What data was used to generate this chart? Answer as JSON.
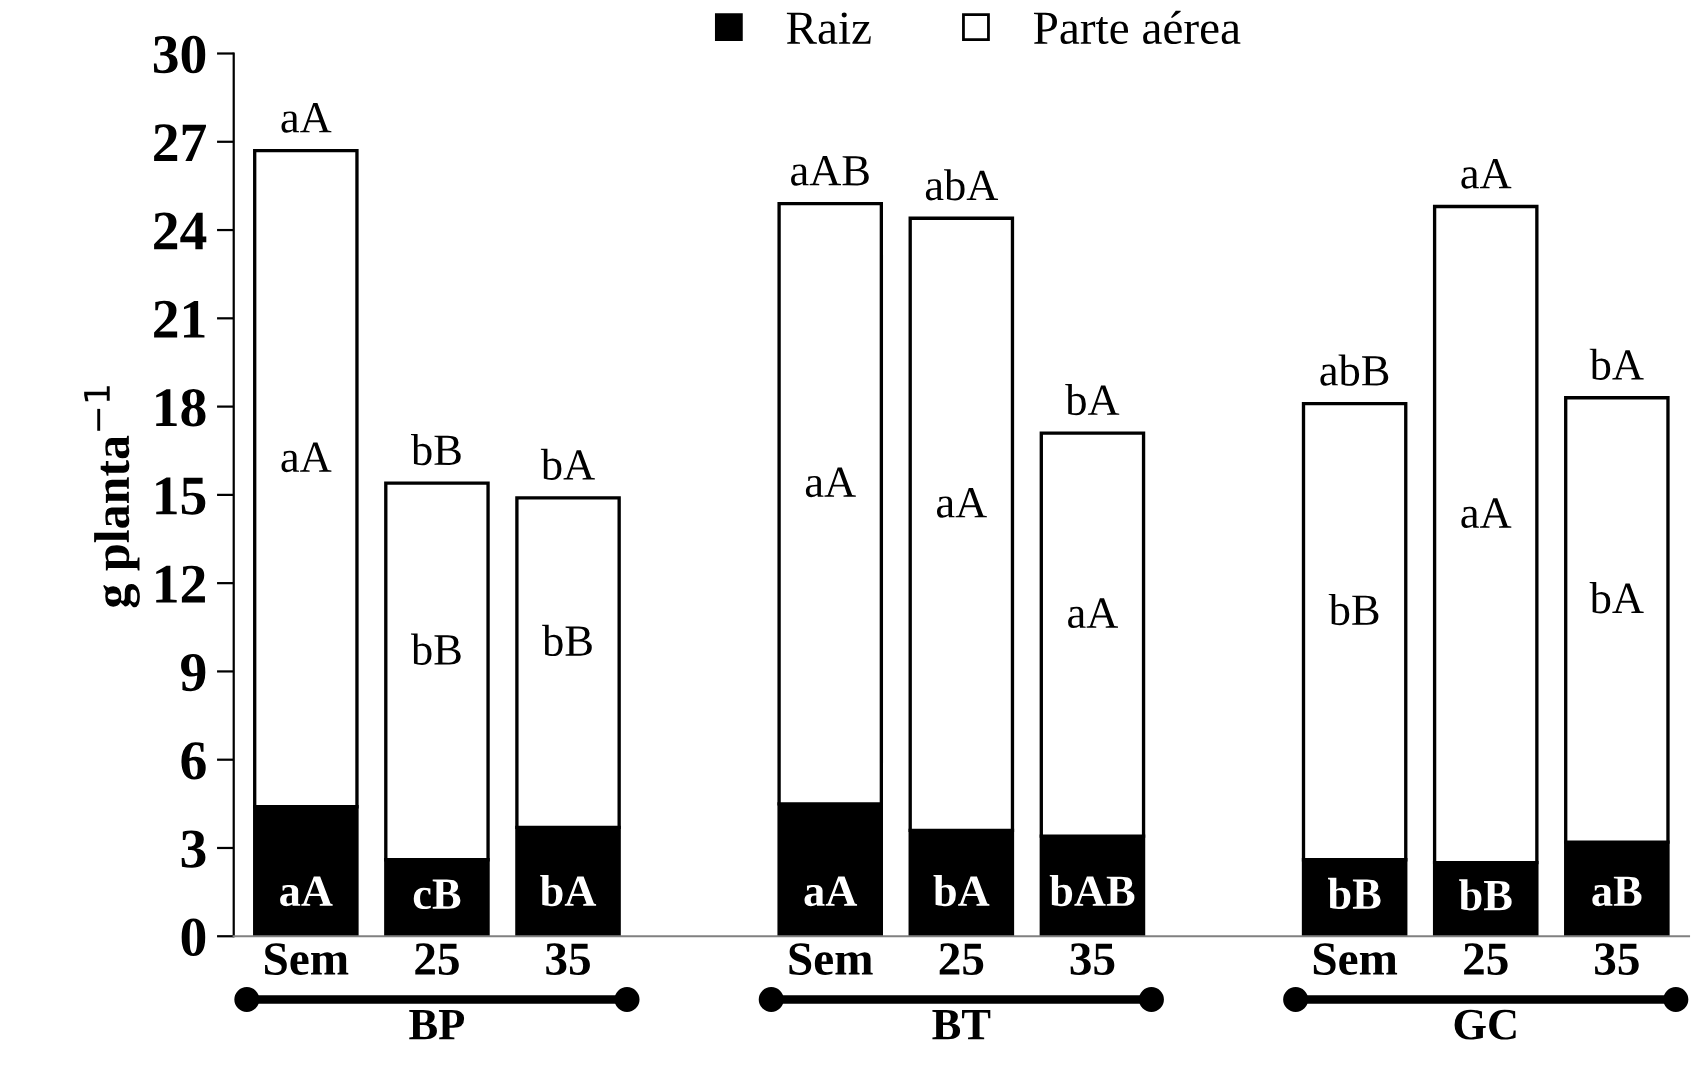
{
  "chart_data": {
    "type": "bar",
    "stacked": true,
    "categories": [
      "Sem",
      "25",
      "35",
      null,
      "Sem",
      "25",
      "35",
      null,
      "Sem",
      "25",
      "35"
    ],
    "series": [
      {
        "name": "Raiz",
        "color": "#000000",
        "values": [
          4.4,
          2.6,
          3.7,
          null,
          4.5,
          3.6,
          3.4,
          null,
          2.6,
          2.5,
          3.2
        ],
        "value_labels": [
          "aA",
          "cB",
          "bA",
          null,
          "aA",
          "bA",
          "bAB",
          null,
          "bB",
          "bB",
          "aB"
        ]
      },
      {
        "name": "Parte aérea",
        "color": "#ffffff",
        "values": [
          22.3,
          12.8,
          11.2,
          null,
          20.4,
          20.8,
          13.7,
          null,
          15.5,
          22.3,
          15.1
        ],
        "value_labels": [
          "aA",
          "bB",
          "bB",
          null,
          "aA",
          "aA",
          "aA",
          null,
          "bB",
          "aA",
          "bA"
        ]
      }
    ],
    "totals": [
      "aA",
      "bB",
      "bA",
      null,
      "aAB",
      "abA",
      "bA",
      null,
      "abB",
      "aA",
      "bA"
    ],
    "ylabel": "g planta$^{−1}$",
    "ylim": [
      0,
      30
    ],
    "yticks": [
      0,
      3,
      6,
      9,
      12,
      15,
      18,
      21,
      24,
      27,
      30
    ],
    "annotations": [
      "BP",
      "BT",
      "GC"
    ],
    "legend": "top",
    "grid": false
  }
}
